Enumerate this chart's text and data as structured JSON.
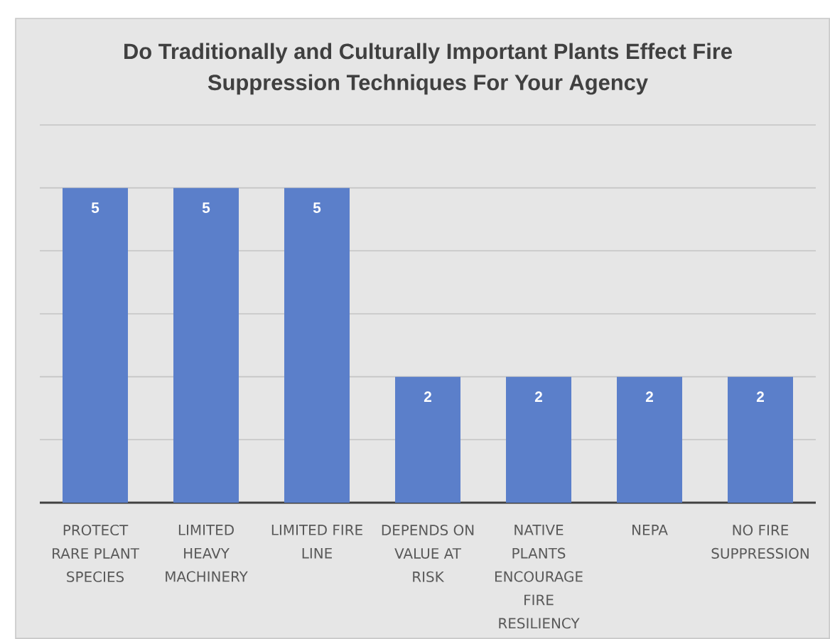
{
  "chart_data": {
    "type": "bar",
    "title": "Do Traditionally and Culturally Important Plants Effect Fire Suppression Techniques For Your Agency",
    "categories": [
      "PROTECT RARE PLANT SPECIES",
      "LIMITED HEAVY MACHINERY",
      "LIMITED FIRE LINE",
      "DEPENDS ON VALUE AT RISK",
      "NATIVE PLANTS ENCOURAGE FIRE RESILIENCY",
      "NEPA",
      "NO FIRE SUPPRESSION"
    ],
    "values": [
      5,
      5,
      5,
      2,
      2,
      2,
      2
    ],
    "color": "#5b7fca",
    "ylim": [
      0,
      6
    ],
    "yticks": [
      {
        "value": 0,
        "label": null
      },
      {
        "value": 1,
        "label": null
      },
      {
        "value": 2,
        "label": null
      },
      {
        "value": 3,
        "label": null
      },
      {
        "value": 4,
        "label": null
      },
      {
        "value": 5,
        "label": null
      },
      {
        "value": 6,
        "label": null
      }
    ],
    "grid": "y",
    "tick_labels": "x",
    "data_labels": true
  }
}
